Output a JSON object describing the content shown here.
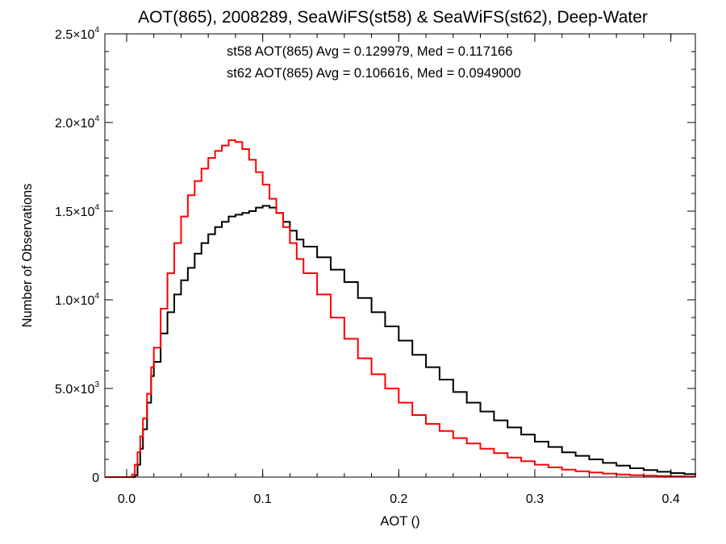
{
  "chart_data": {
    "type": "line",
    "style": "step histogram",
    "title": "AOT(865), 2008289, SeaWiFS(st58) & SeaWiFS(st62), Deep-Water",
    "xlabel": "AOT ()",
    "ylabel": "Number of Observations",
    "xlim": [
      -0.016,
      0.418
    ],
    "ylim": [
      0,
      25000
    ],
    "x_ticks": [
      {
        "value": 0.0,
        "label": "0.0"
      },
      {
        "value": 0.1,
        "label": "0.1"
      },
      {
        "value": 0.2,
        "label": "0.2"
      },
      {
        "value": 0.3,
        "label": "0.3"
      },
      {
        "value": 0.4,
        "label": "0.4"
      }
    ],
    "y_ticks": [
      {
        "value": 0,
        "mant": "0",
        "exp": ""
      },
      {
        "value": 5000,
        "mant": "5.0×10",
        "exp": "3"
      },
      {
        "value": 10000,
        "mant": "1.0×10",
        "exp": "4"
      },
      {
        "value": 15000,
        "mant": "1.5×10",
        "exp": "4"
      },
      {
        "value": 20000,
        "mant": "2.0×10",
        "exp": "4"
      },
      {
        "value": 25000,
        "mant": "2.5×10",
        "exp": "4"
      }
    ],
    "grid": false,
    "annotations": [
      {
        "text": "st58 AOT(865) Avg = 0.129979, Med = 0.117166",
        "color": "#000000"
      },
      {
        "text": "st62 AOT(865) Avg = 0.106616, Med = 0.0949000",
        "color": "#ff0000"
      }
    ],
    "series": [
      {
        "color": "#000000",
        "x": [
          -0.016,
          0.004,
          0.006,
          0.008,
          0.01,
          0.012,
          0.015,
          0.018,
          0.02,
          0.025,
          0.03,
          0.035,
          0.04,
          0.045,
          0.05,
          0.055,
          0.06,
          0.065,
          0.07,
          0.075,
          0.08,
          0.085,
          0.09,
          0.095,
          0.1,
          0.105,
          0.11,
          0.115,
          0.12,
          0.125,
          0.13,
          0.14,
          0.15,
          0.16,
          0.17,
          0.18,
          0.19,
          0.2,
          0.21,
          0.22,
          0.23,
          0.24,
          0.25,
          0.26,
          0.27,
          0.28,
          0.29,
          0.3,
          0.31,
          0.32,
          0.33,
          0.34,
          0.35,
          0.36,
          0.37,
          0.38,
          0.39,
          0.4,
          0.41,
          0.418
        ],
        "values": [
          0,
          0,
          100,
          700,
          1600,
          2700,
          4200,
          5700,
          6500,
          8100,
          9300,
          10300,
          11100,
          11800,
          12600,
          13200,
          13700,
          14100,
          14400,
          14700,
          14800,
          14900,
          15000,
          15200,
          15300,
          15200,
          14900,
          14400,
          13900,
          13400,
          13000,
          12400,
          11700,
          11000,
          10100,
          9300,
          8500,
          7700,
          6900,
          6200,
          5500,
          4800,
          4200,
          3700,
          3200,
          2800,
          2400,
          2000,
          1700,
          1400,
          1200,
          1000,
          800,
          650,
          500,
          400,
          300,
          230,
          170,
          120
        ]
      },
      {
        "color": "#ff0000",
        "x": [
          -0.016,
          0.002,
          0.004,
          0.006,
          0.008,
          0.01,
          0.012,
          0.015,
          0.018,
          0.02,
          0.025,
          0.03,
          0.035,
          0.04,
          0.045,
          0.05,
          0.055,
          0.06,
          0.065,
          0.07,
          0.075,
          0.08,
          0.085,
          0.09,
          0.095,
          0.1,
          0.105,
          0.11,
          0.115,
          0.12,
          0.125,
          0.13,
          0.14,
          0.15,
          0.16,
          0.17,
          0.18,
          0.19,
          0.2,
          0.21,
          0.22,
          0.23,
          0.24,
          0.25,
          0.26,
          0.27,
          0.28,
          0.29,
          0.3,
          0.31,
          0.32,
          0.33,
          0.34,
          0.35,
          0.36,
          0.37,
          0.38,
          0.39,
          0.4,
          0.41,
          0.418
        ],
        "values": [
          0,
          0,
          150,
          700,
          1400,
          2300,
          3300,
          4700,
          6200,
          7300,
          9500,
          11500,
          13200,
          14700,
          15900,
          16700,
          17400,
          18000,
          18400,
          18700,
          19000,
          18900,
          18500,
          17900,
          17200,
          16500,
          15700,
          14900,
          14100,
          13200,
          12300,
          11500,
          10300,
          9000,
          7800,
          6700,
          5800,
          5000,
          4200,
          3500,
          3000,
          2600,
          2200,
          1900,
          1600,
          1350,
          1100,
          900,
          700,
          550,
          420,
          330,
          260,
          200,
          150,
          110,
          80,
          60,
          45,
          30,
          20
        ]
      }
    ]
  }
}
